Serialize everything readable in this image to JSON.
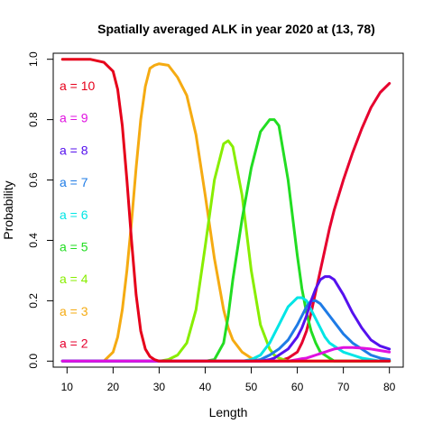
{
  "chart_data": {
    "type": "line",
    "title": "Spatially averaged ALK in  year 2020 at (13, 78)",
    "xlabel": "Length",
    "ylabel": "Probability",
    "xlim": [
      7,
      83
    ],
    "ylim": [
      -0.02,
      1.02
    ],
    "xticks": [
      10,
      20,
      30,
      40,
      50,
      60,
      70,
      80
    ],
    "yticks": [
      "0.0",
      "0.2",
      "0.4",
      "0.6",
      "0.8",
      "1.0"
    ],
    "x": [
      9,
      12,
      15,
      18,
      20,
      21,
      22,
      23,
      24,
      25,
      26,
      27,
      28,
      29,
      30,
      32,
      34,
      36,
      38,
      40,
      42,
      44,
      45,
      46,
      48,
      50,
      52,
      54,
      55,
      56,
      58,
      60,
      61,
      62,
      63,
      64,
      65,
      66,
      67,
      68,
      70,
      72,
      74,
      76,
      78,
      80
    ],
    "series": [
      {
        "name": "a = 2",
        "color": "#e6002e",
        "values": [
          0.0,
          0.0,
          0.0,
          0.0,
          0.0,
          0.0,
          0.0,
          0.0,
          0.0,
          0.0,
          0.0,
          0.0,
          0.0,
          0.0,
          0.0,
          0.0,
          0.0,
          0.0,
          0.0,
          0.0,
          0.0,
          0.0,
          0.0,
          0.0,
          0.0,
          0.0,
          0.0,
          0.0,
          0.0,
          0.0,
          0.01,
          0.03,
          0.06,
          0.1,
          0.16,
          0.23,
          0.3,
          0.37,
          0.44,
          0.5,
          0.6,
          0.69,
          0.77,
          0.84,
          0.89,
          0.92
        ]
      },
      {
        "name": "a = 3",
        "color": "#f5ab12",
        "values": [
          0.0,
          0.0,
          0.0,
          0.0,
          0.03,
          0.08,
          0.17,
          0.3,
          0.46,
          0.64,
          0.8,
          0.91,
          0.97,
          0.98,
          0.985,
          0.98,
          0.94,
          0.88,
          0.75,
          0.55,
          0.34,
          0.17,
          0.11,
          0.07,
          0.03,
          0.01,
          0.0,
          0.0,
          0.0,
          0.0,
          0.0,
          0.0,
          0.0,
          0.0,
          0.0,
          0.0,
          0.0,
          0.0,
          0.0,
          0.0,
          0.0,
          0.0,
          0.0,
          0.0,
          0.0,
          0.0
        ]
      },
      {
        "name": "a = 4",
        "color": "#88ee00",
        "values": [
          0.0,
          0.0,
          0.0,
          0.0,
          0.0,
          0.0,
          0.0,
          0.0,
          0.0,
          0.0,
          0.0,
          0.0,
          0.0,
          0.0,
          0.0,
          0.005,
          0.02,
          0.06,
          0.17,
          0.38,
          0.6,
          0.72,
          0.73,
          0.71,
          0.55,
          0.3,
          0.12,
          0.04,
          0.02,
          0.01,
          0.0,
          0.0,
          0.0,
          0.0,
          0.0,
          0.0,
          0.0,
          0.0,
          0.0,
          0.0,
          0.0,
          0.0,
          0.0,
          0.0,
          0.0,
          0.0
        ]
      },
      {
        "name": "a = 5",
        "color": "#22dd22",
        "values": [
          0.0,
          0.0,
          0.0,
          0.0,
          0.0,
          0.0,
          0.0,
          0.0,
          0.0,
          0.0,
          0.0,
          0.0,
          0.0,
          0.0,
          0.0,
          0.0,
          0.0,
          0.0,
          0.0,
          0.0,
          0.005,
          0.06,
          0.15,
          0.27,
          0.47,
          0.64,
          0.76,
          0.8,
          0.8,
          0.78,
          0.6,
          0.35,
          0.24,
          0.16,
          0.1,
          0.06,
          0.03,
          0.02,
          0.01,
          0.0,
          0.0,
          0.0,
          0.0,
          0.0,
          0.0,
          0.0
        ]
      },
      {
        "name": "a = 6",
        "color": "#00e5e5",
        "values": [
          0.0,
          0.0,
          0.0,
          0.0,
          0.0,
          0.0,
          0.0,
          0.0,
          0.0,
          0.0,
          0.0,
          0.0,
          0.0,
          0.0,
          0.0,
          0.0,
          0.0,
          0.0,
          0.0,
          0.0,
          0.0,
          0.0,
          0.0,
          0.0,
          0.0,
          0.005,
          0.02,
          0.06,
          0.09,
          0.12,
          0.18,
          0.21,
          0.21,
          0.2,
          0.17,
          0.14,
          0.11,
          0.08,
          0.06,
          0.05,
          0.03,
          0.02,
          0.01,
          0.005,
          0.0,
          0.0
        ]
      },
      {
        "name": "a = 7",
        "color": "#1e7be6",
        "values": [
          0.0,
          0.0,
          0.0,
          0.0,
          0.0,
          0.0,
          0.0,
          0.0,
          0.0,
          0.0,
          0.0,
          0.0,
          0.0,
          0.0,
          0.0,
          0.0,
          0.0,
          0.0,
          0.0,
          0.0,
          0.0,
          0.0,
          0.0,
          0.0,
          0.0,
          0.0,
          0.005,
          0.02,
          0.03,
          0.04,
          0.07,
          0.12,
          0.15,
          0.18,
          0.2,
          0.2,
          0.19,
          0.17,
          0.15,
          0.13,
          0.09,
          0.06,
          0.04,
          0.02,
          0.01,
          0.005
        ]
      },
      {
        "name": "a = 8",
        "color": "#5511ee",
        "values": [
          0.0,
          0.0,
          0.0,
          0.0,
          0.0,
          0.0,
          0.0,
          0.0,
          0.0,
          0.0,
          0.0,
          0.0,
          0.0,
          0.0,
          0.0,
          0.0,
          0.0,
          0.0,
          0.0,
          0.0,
          0.0,
          0.0,
          0.0,
          0.0,
          0.0,
          0.0,
          0.0,
          0.005,
          0.01,
          0.02,
          0.04,
          0.08,
          0.11,
          0.15,
          0.2,
          0.24,
          0.27,
          0.28,
          0.28,
          0.27,
          0.22,
          0.16,
          0.11,
          0.07,
          0.05,
          0.04
        ]
      },
      {
        "name": "a = 9",
        "color": "#e011e0",
        "values": [
          0.0,
          0.0,
          0.0,
          0.0,
          0.0,
          0.0,
          0.0,
          0.0,
          0.0,
          0.0,
          0.0,
          0.0,
          0.0,
          0.0,
          0.0,
          0.0,
          0.0,
          0.0,
          0.0,
          0.0,
          0.0,
          0.0,
          0.0,
          0.0,
          0.0,
          0.0,
          0.0,
          0.0,
          0.0,
          0.0,
          0.0,
          0.005,
          0.008,
          0.01,
          0.015,
          0.02,
          0.025,
          0.03,
          0.035,
          0.04,
          0.045,
          0.045,
          0.043,
          0.04,
          0.035,
          0.03
        ]
      },
      {
        "name": "a = 10",
        "color": "#e6001a",
        "values": [
          1.0,
          1.0,
          1.0,
          0.99,
          0.96,
          0.9,
          0.78,
          0.6,
          0.4,
          0.22,
          0.1,
          0.04,
          0.015,
          0.005,
          0.0,
          0.0,
          0.0,
          0.0,
          0.0,
          0.0,
          0.0,
          0.0,
          0.0,
          0.0,
          0.0,
          0.0,
          0.0,
          0.0,
          0.0,
          0.0,
          0.0,
          0.0,
          0.0,
          0.0,
          0.0,
          0.0,
          0.0,
          0.0,
          0.0,
          0.0,
          0.0,
          0.0,
          0.0,
          0.0,
          0.0,
          0.0
        ]
      }
    ],
    "legend_order": [
      "a = 10",
      "a = 9",
      "a = 8",
      "a = 7",
      "a = 6",
      "a = 5",
      "a = 4",
      "a = 3",
      "a = 2"
    ],
    "legend_placement": "left-inside",
    "grid": false
  }
}
